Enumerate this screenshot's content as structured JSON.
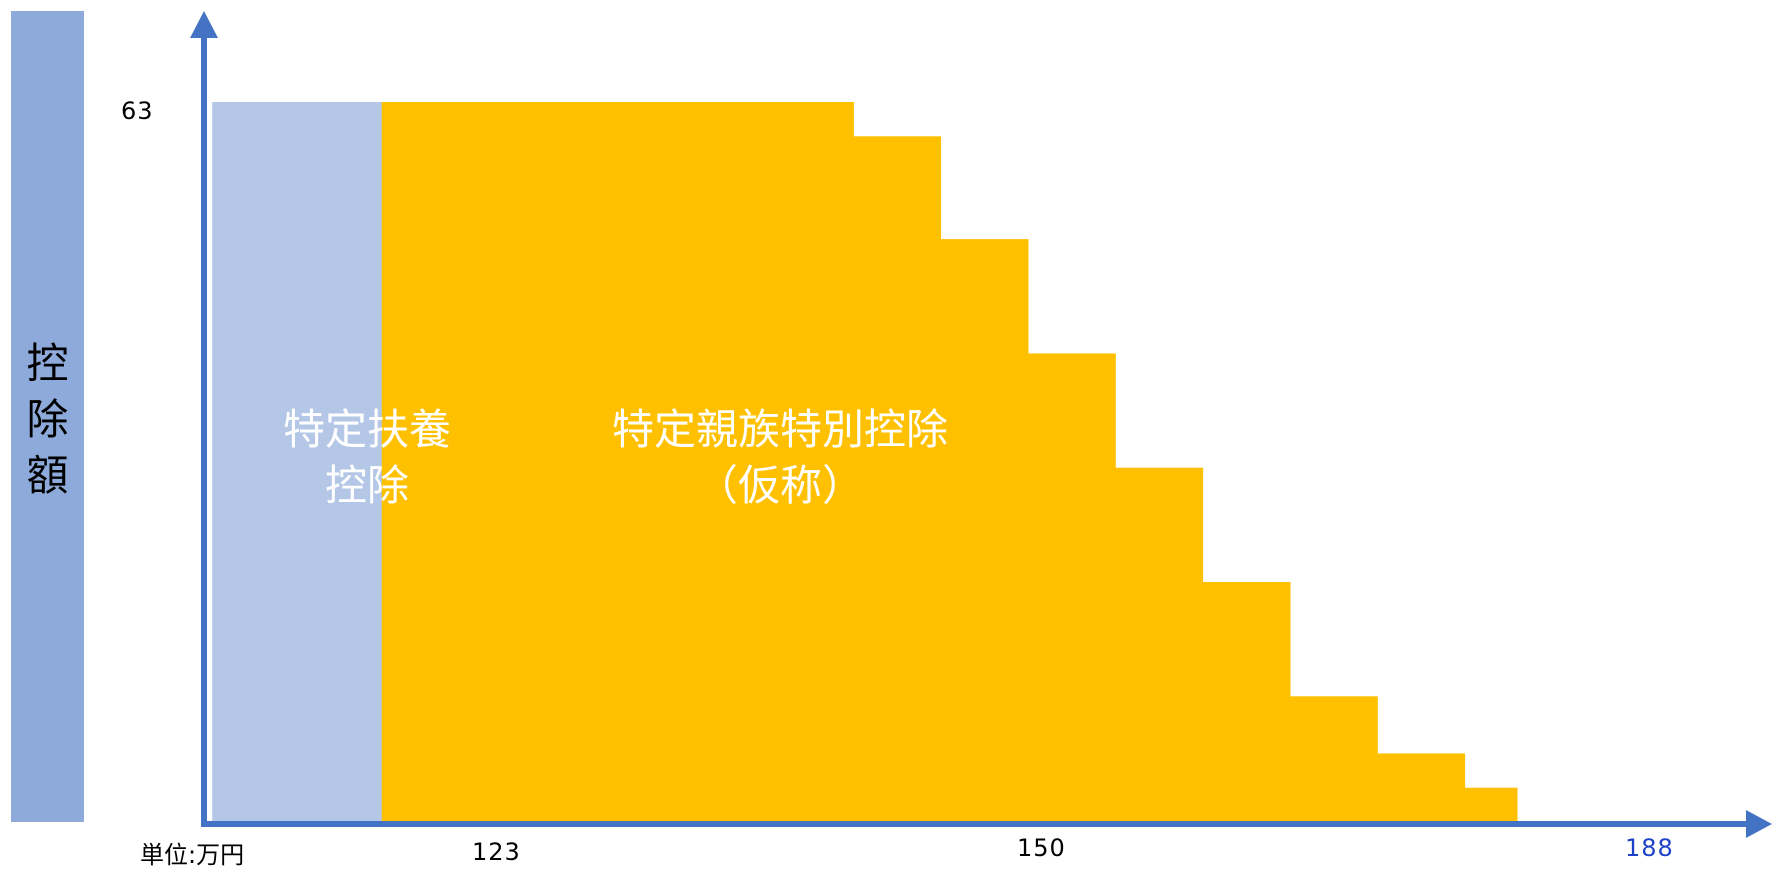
{
  "chart_data": {
    "type": "area",
    "yaxis_label": "控除額",
    "unit_label": "単位:万円",
    "y_ticks": [
      63
    ],
    "x_ticks": [
      123,
      150,
      188
    ],
    "x_tick_highlight": 188,
    "xlim": [
      113,
      201
    ],
    "ylim": [
      0,
      70
    ],
    "regions": [
      {
        "name": "特定扶養控除",
        "lines": [
          "特定扶養",
          "控除"
        ],
        "color": "#b4c7e7",
        "steps": [
          {
            "x0": 113.3,
            "x1": 123,
            "y": 63
          }
        ]
      },
      {
        "name": "特定親族特別控除（仮称）",
        "lines": [
          "特定親族特別控除",
          "（仮称）"
        ],
        "color": "#ffc000",
        "steps": [
          {
            "x0": 123,
            "x1": 150,
            "y": 63
          },
          {
            "x0": 150,
            "x1": 155,
            "y": 60
          },
          {
            "x0": 155,
            "x1": 160,
            "y": 51
          },
          {
            "x0": 160,
            "x1": 165,
            "y": 41
          },
          {
            "x0": 165,
            "x1": 170,
            "y": 31
          },
          {
            "x0": 170,
            "x1": 175,
            "y": 21
          },
          {
            "x0": 175,
            "x1": 180,
            "y": 11
          },
          {
            "x0": 180,
            "x1": 185,
            "y": 6
          },
          {
            "x0": 185,
            "x1": 188,
            "y": 3
          }
        ]
      }
    ],
    "axis_color": "#4472c4",
    "grid": false
  }
}
